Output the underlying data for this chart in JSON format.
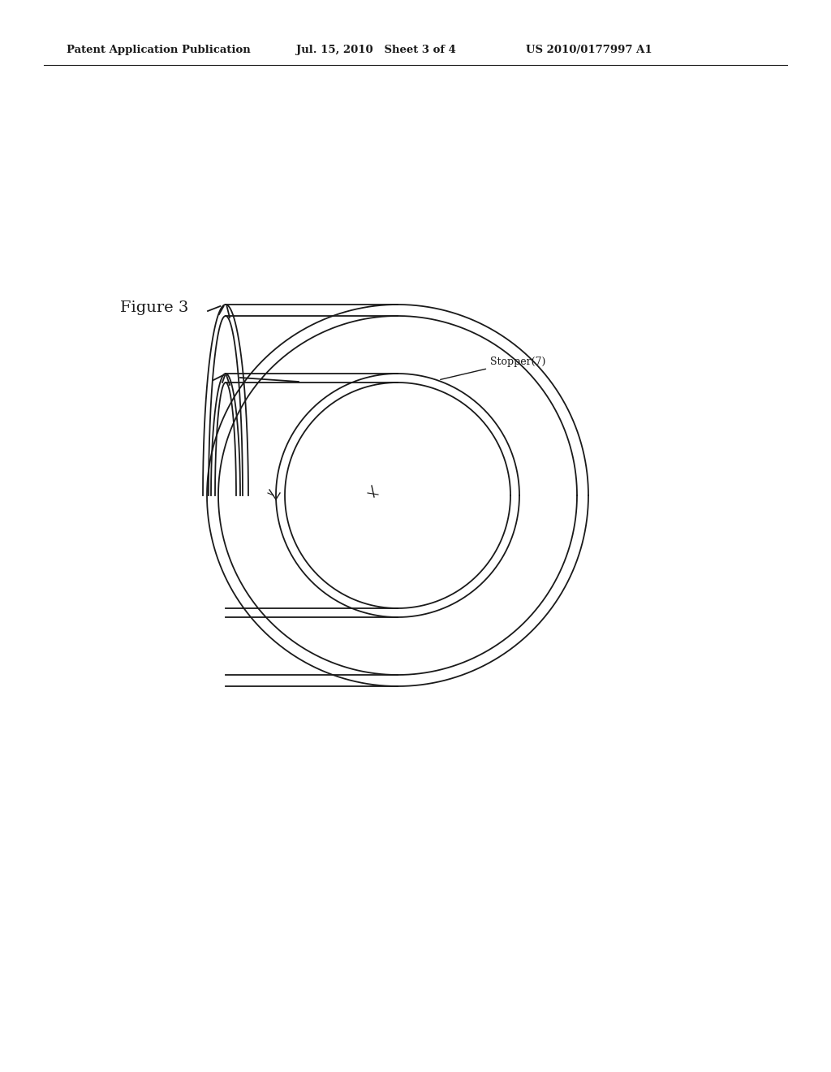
{
  "header_left": "Patent Application Publication",
  "header_mid": "Jul. 15, 2010   Sheet 3 of 4",
  "header_right": "US 2010/0177997 A1",
  "figure_label": "Figure 3",
  "stopper_label": "Stopper(7)",
  "background": "#ffffff",
  "line_color": "#1a1a1a",
  "header_fontsize": 9.5,
  "figure_label_fontsize": 14,
  "annotation_fontsize": 9,
  "lw": 1.3
}
